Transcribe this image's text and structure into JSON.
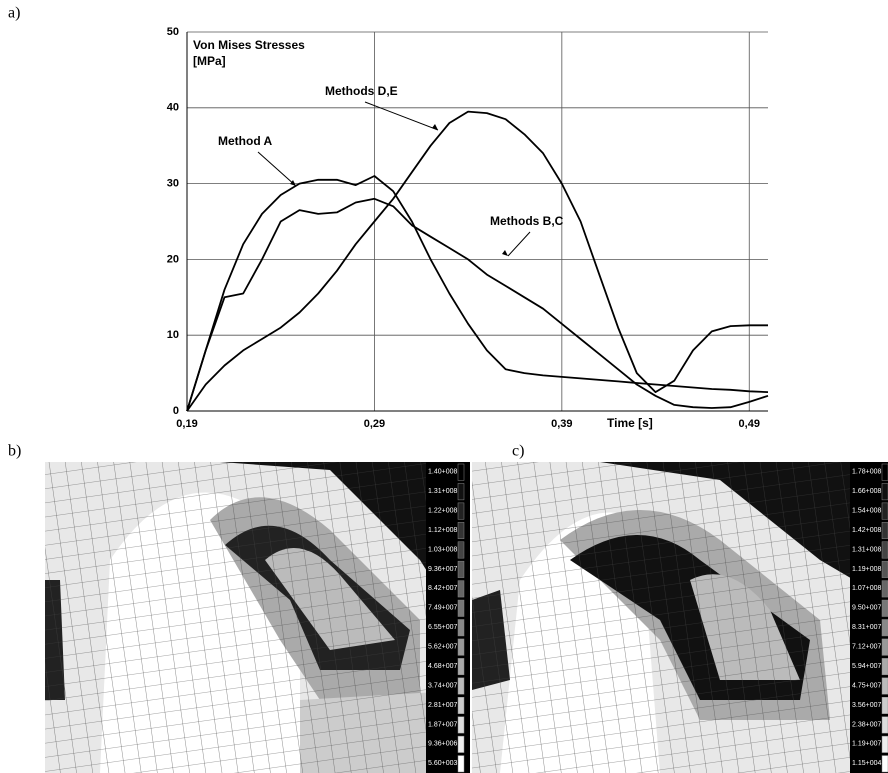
{
  "panel_labels": [
    "a)",
    "b)",
    "c)"
  ],
  "chart_data": {
    "type": "line",
    "title": "Von Mises Stresses",
    "y_unit": "[MPa]",
    "x_label": "Time [s]",
    "x": [
      0.19,
      0.2,
      0.21,
      0.22,
      0.23,
      0.24,
      0.25,
      0.26,
      0.27,
      0.28,
      0.29,
      0.3,
      0.31,
      0.32,
      0.33,
      0.34,
      0.35,
      0.36,
      0.37,
      0.38,
      0.39,
      0.4,
      0.41,
      0.42,
      0.43,
      0.44,
      0.45,
      0.46,
      0.47,
      0.48,
      0.49,
      0.5
    ],
    "series": [
      {
        "name": "Method A",
        "color": "#000000",
        "values": [
          0,
          8,
          16,
          22,
          26,
          28.5,
          30,
          30.5,
          30.5,
          29.8,
          31,
          29,
          25,
          20,
          15.5,
          11.5,
          8,
          5.5,
          5,
          4.7,
          4.5,
          4.3,
          4.1,
          3.9,
          3.7,
          3.5,
          3.3,
          3.1,
          2.9,
          2.8,
          2.6,
          2.5
        ]
      },
      {
        "name": "Methods B,C",
        "color": "#000000",
        "values": [
          0,
          8,
          15,
          15.5,
          20,
          25,
          26.5,
          26,
          26.2,
          27.5,
          28,
          27,
          24.5,
          23,
          21.5,
          20,
          18,
          16.5,
          15,
          13.5,
          11.5,
          9.5,
          7.5,
          5.5,
          3.5,
          2,
          0.8,
          0.5,
          0.4,
          0.5,
          1.2,
          2
        ]
      },
      {
        "name": "Methods D,E",
        "color": "#000000",
        "values": [
          0,
          3.5,
          6,
          8,
          9.5,
          11,
          13,
          15.5,
          18.5,
          22,
          25,
          28,
          31.5,
          35,
          38,
          39.5,
          39.3,
          38.5,
          36.5,
          34,
          30,
          25,
          18,
          11,
          5,
          2.5,
          4,
          8,
          10.5,
          11.2,
          11.3,
          11.3
        ]
      }
    ],
    "xlim": [
      0.19,
      0.5
    ],
    "xticks": [
      {
        "value": 0.19,
        "label": "0,19"
      },
      {
        "value": 0.29,
        "label": "0,29"
      },
      {
        "value": 0.39,
        "label": "0,39"
      },
      {
        "value": 0.49,
        "label": "0,49"
      }
    ],
    "ylim": [
      0,
      50
    ],
    "yticks": [
      0,
      10,
      20,
      30,
      40,
      50
    ],
    "grid": true
  },
  "colorbar_b": [
    "1.40+008",
    "1.31+008",
    "1.22+008",
    "1.12+008",
    "1.03+008",
    "9.36+007",
    "8.42+007",
    "7.49+007",
    "6.55+007",
    "5.62+007",
    "4.68+007",
    "3.74+007",
    "2.81+007",
    "1.87+007",
    "9.36+006",
    "5.60+003"
  ],
  "colorbar_c": [
    "1.78+008",
    "1.66+008",
    "1.54+008",
    "1.42+008",
    "1.31+008",
    "1.19+008",
    "1.07+008",
    "9.50+007",
    "8.31+007",
    "7.12+007",
    "5.94+007",
    "4.75+007",
    "3.56+007",
    "2.38+007",
    "1.19+007",
    "1.15+004"
  ]
}
